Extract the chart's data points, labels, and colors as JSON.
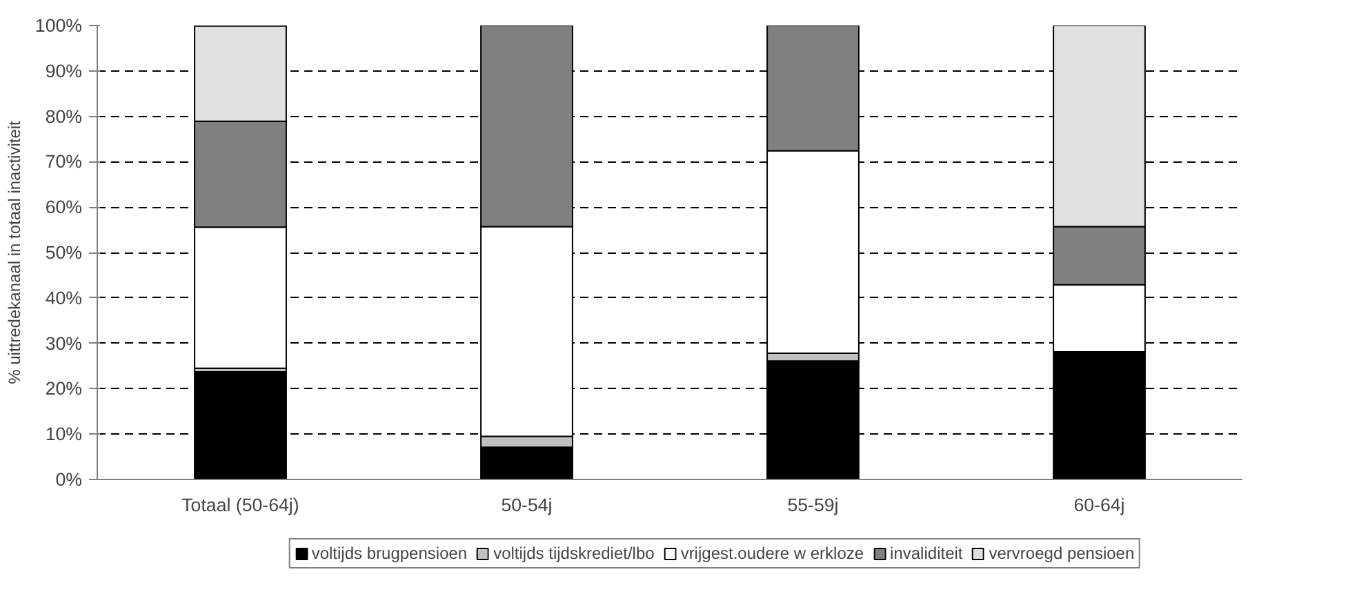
{
  "chart_data": {
    "type": "bar",
    "stacked": true,
    "ylabel": "% uittredekanaal in totaal inactiviteit",
    "categories": [
      "Totaal (50-64j)",
      "50-54j",
      "55-59j",
      "60-64j"
    ],
    "series": [
      {
        "name": "voltijds brugpensioen",
        "color": "#000000",
        "values": [
          23.7,
          7.1,
          26.1,
          28.1
        ]
      },
      {
        "name": "voltijds tijdskrediet/lbo",
        "color": "#c0c0c0",
        "values": [
          0.8,
          2.4,
          1.7,
          0
        ]
      },
      {
        "name": "vrijgest.oudere w erkloze",
        "color": "#ffffff",
        "values": [
          31.1,
          46.2,
          44.6,
          14.8
        ]
      },
      {
        "name": "invaliditeit",
        "color": "#808080",
        "values": [
          23.3,
          44.3,
          27.6,
          12.8
        ]
      },
      {
        "name": "vervroegd pensioen",
        "color": "#e0e0e0",
        "values": [
          21.0,
          0,
          0,
          44.3
        ]
      }
    ],
    "ylim": [
      0,
      100
    ],
    "yticks": [
      {
        "value": 0,
        "label": "0%"
      },
      {
        "value": 10,
        "label": "10%"
      },
      {
        "value": 20,
        "label": "20%"
      },
      {
        "value": 30,
        "label": "30%"
      },
      {
        "value": 40,
        "label": "40%"
      },
      {
        "value": 50,
        "label": "50%"
      },
      {
        "value": 60,
        "label": "60%"
      },
      {
        "value": 70,
        "label": "70%"
      },
      {
        "value": 80,
        "label": "80%"
      },
      {
        "value": 90,
        "label": "90%"
      },
      {
        "value": 100,
        "label": "100%"
      }
    ],
    "grid": "y",
    "legend": "bottom"
  }
}
